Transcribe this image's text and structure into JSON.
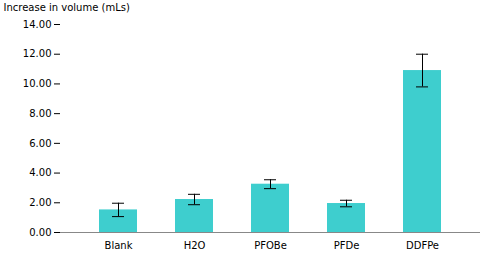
{
  "chart_data": {
    "type": "bar",
    "categories": [
      "Blank",
      "H2O",
      "PFOBe",
      "PFDe",
      "DDFPe"
    ],
    "values": [
      1.52,
      2.22,
      3.25,
      1.95,
      10.9
    ],
    "errors": [
      0.45,
      0.35,
      0.3,
      0.22,
      1.1
    ],
    "color": "#3ECECE",
    "ylabel": "Increase in volume (mLs)",
    "ylim": [
      0,
      14.0
    ],
    "yticks": [
      {
        "value": 0,
        "label": "0.00"
      },
      {
        "value": 2,
        "label": "2.00"
      },
      {
        "value": 4,
        "label": "4.00"
      },
      {
        "value": 6,
        "label": "6.00"
      },
      {
        "value": 8,
        "label": "8.00"
      },
      {
        "value": 10,
        "label": "10.00"
      },
      {
        "value": 12,
        "label": "12.00"
      },
      {
        "value": 14,
        "label": "14.00"
      }
    ],
    "grid": false
  }
}
